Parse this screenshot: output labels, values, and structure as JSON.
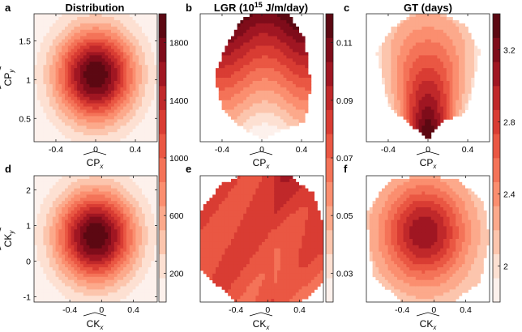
{
  "figure": {
    "panels": [
      {
        "letter": "a",
        "title": "Distribution",
        "xlabel": "CP_x",
        "ylabel": "CP_y",
        "field": "dist",
        "levels": 10
      },
      {
        "letter": "b",
        "title": "LGR",
        "xlabel": "CP_x",
        "ylabel": "",
        "field": "lgr_top",
        "levels": 10
      },
      {
        "letter": "c",
        "title": "GT (days)",
        "xlabel": "CP_x",
        "ylabel": "",
        "field": "gt_top",
        "levels": 10
      },
      {
        "letter": "d",
        "title": "",
        "xlabel": "CK_x",
        "ylabel": "CK_y",
        "field": "dist",
        "levels": 10
      },
      {
        "letter": "e",
        "title": "",
        "xlabel": "CK_x",
        "ylabel": "",
        "field": "lgr_bottom",
        "levels": 10
      },
      {
        "letter": "f",
        "title": "",
        "xlabel": "CK_x",
        "ylabel": "",
        "field": "gt_bottom",
        "levels": 10
      }
    ],
    "lgr_title": {
      "prefix": "LGR (10",
      "exponent": "15",
      "suffix": " J/m/day)"
    },
    "cp_label": {
      "base": "CP",
      "x_sub": "x",
      "y_sub": "y"
    },
    "ck_label": {
      "base": "CK",
      "x_sub": "x",
      "y_sub": "y"
    },
    "colors": [
      "#fdf1ec",
      "#fde0d2",
      "#fcc5ad",
      "#fca98b",
      "#fb8e6f",
      "#f47358",
      "#ea5743",
      "#d93c33",
      "#c0282a",
      "#a01622",
      "#7f0c1a",
      "#5c0812"
    ]
  },
  "chart_data": [
    {
      "type": "contour",
      "panel": "a",
      "title": "Distribution",
      "xlabel": "CP_x",
      "ylabel": "CP_y",
      "xlim": [
        -0.62,
        0.62
      ],
      "ylim": [
        0.2,
        1.85
      ],
      "xticks": [
        "-0.4",
        "0",
        "0.4"
      ],
      "xtick_values": [
        -0.4,
        0,
        0.4
      ],
      "yticks": [
        "0.5",
        "1",
        "1.5"
      ],
      "ytick_values": [
        0.5,
        1,
        1.5
      ],
      "peak": {
        "x": -0.02,
        "y": 1.05,
        "value": 1950
      }
    },
    {
      "type": "contour",
      "panel": "b",
      "title": "LGR (10^15 J/m/day)",
      "xlabel": "CP_x",
      "xlim": [
        -0.62,
        0.62
      ],
      "xticks": [
        "-0.4",
        "0",
        "0.4"
      ],
      "xtick_values": [
        -0.4,
        0,
        0.4
      ],
      "value_range": [
        0.03,
        0.12
      ]
    },
    {
      "type": "contour",
      "panel": "c",
      "title": "GT (days)",
      "xlabel": "CP_x",
      "xlim": [
        -0.62,
        0.62
      ],
      "xticks": [
        "-0.4",
        "0",
        "0.4"
      ],
      "xtick_values": [
        -0.4,
        0,
        0.4
      ],
      "value_range": [
        2.0,
        3.4
      ]
    },
    {
      "type": "contour",
      "panel": "d",
      "xlabel": "CK_x",
      "ylabel": "CK_y",
      "xlim": [
        -0.85,
        0.7
      ],
      "ylim": [
        -1.15,
        2.4
      ],
      "xticks": [
        "-0.4",
        "0",
        "0.4"
      ],
      "xtick_values": [
        -0.4,
        0,
        0.4
      ],
      "yticks": [
        "-1",
        "0",
        "1",
        "2"
      ],
      "ytick_values": [
        -1,
        0,
        1,
        2
      ],
      "peak": {
        "x": -0.02,
        "y": 0.85,
        "value": 1950
      }
    },
    {
      "type": "contour",
      "panel": "e",
      "xlabel": "CK_x",
      "xlim": [
        -0.85,
        0.7
      ],
      "xticks": [
        "-0.4",
        "0",
        "0.4"
      ],
      "xtick_values": [
        -0.4,
        0,
        0.4
      ],
      "value_range": [
        0.03,
        0.12
      ]
    },
    {
      "type": "contour",
      "panel": "f",
      "xlabel": "CK_x",
      "xlim": [
        -0.85,
        0.7
      ],
      "xticks": [
        "-0.4",
        "0",
        "0.4"
      ],
      "xtick_values": [
        -0.4,
        0,
        0.4
      ],
      "value_range": [
        2.0,
        3.4
      ]
    },
    {
      "type": "colorbar",
      "for": "distribution",
      "range": [
        0,
        2000
      ],
      "ticks": [
        "200",
        "600",
        "1000",
        "1400",
        "1800"
      ],
      "tick_values": [
        200,
        600,
        1000,
        1400,
        1800
      ]
    },
    {
      "type": "colorbar",
      "for": "LGR",
      "range": [
        0.02,
        0.12
      ],
      "ticks": [
        "0.03",
        "0.05",
        "0.07",
        "0.09",
        "0.11"
      ],
      "tick_values": [
        0.03,
        0.05,
        0.07,
        0.09,
        0.11
      ]
    },
    {
      "type": "colorbar",
      "for": "GT",
      "range": [
        1.8,
        3.4
      ],
      "ticks": [
        "2",
        "2.4",
        "2.8",
        "3.2"
      ],
      "tick_values": [
        2,
        2.4,
        2.8,
        3.2
      ]
    }
  ]
}
